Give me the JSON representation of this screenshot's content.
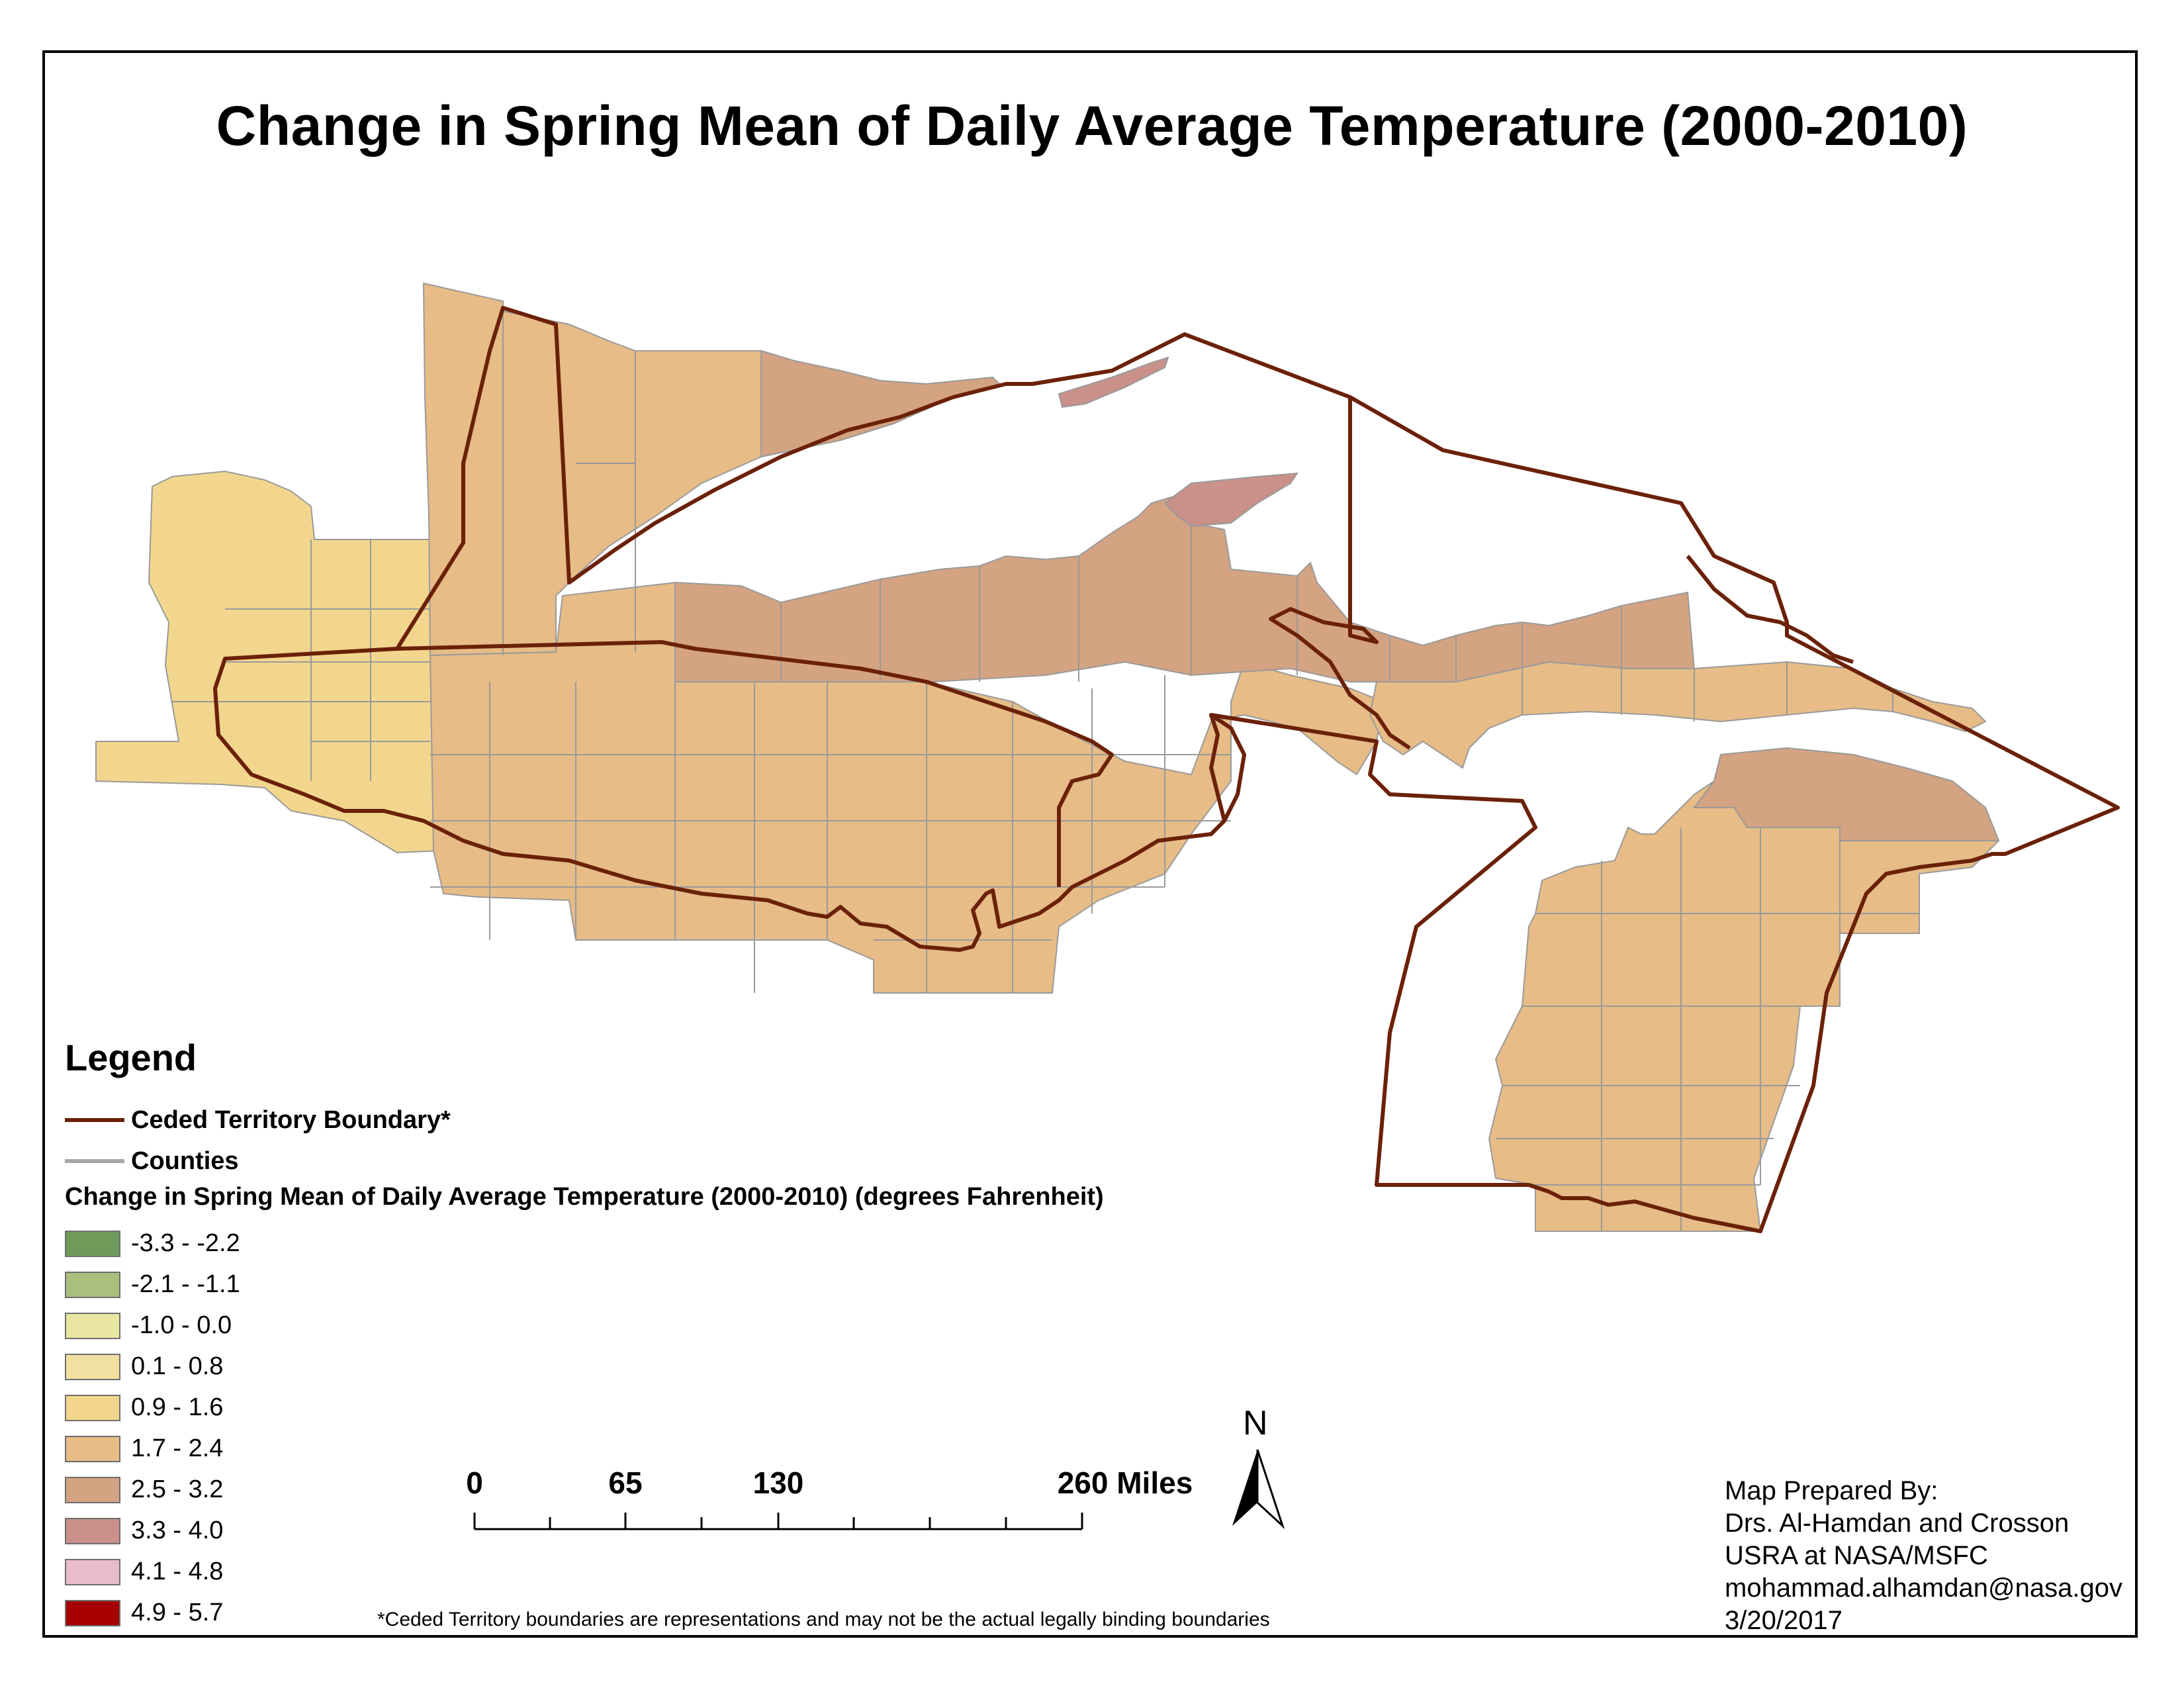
{
  "title": "Change in Spring Mean of Daily Average Temperature (2000-2010)",
  "legend": {
    "heading": "Legend",
    "lines": [
      {
        "label": "Ceded Territory Boundary*",
        "color": "#6b2108"
      },
      {
        "label": "Counties",
        "color": "#a8a8a8"
      }
    ],
    "classes_title": "Change in Spring Mean of Daily Average Temperature (2000-2010) (degrees Fahrenheit)",
    "classes": [
      {
        "label": "-3.3 - -2.2",
        "color": "#6e9b5a"
      },
      {
        "label": "-2.1 - -1.1",
        "color": "#a9bf7d"
      },
      {
        "label": "-1.0 - 0.0",
        "color": "#e8e6a0"
      },
      {
        "label": "0.1 - 0.8",
        "color": "#f2e0a0"
      },
      {
        "label": "0.9 - 1.6",
        "color": "#f3d68e"
      },
      {
        "label": "1.7 - 2.4",
        "color": "#e7bc87"
      },
      {
        "label": "2.5 - 3.2",
        "color": "#d4a382"
      },
      {
        "label": "3.3 - 4.0",
        "color": "#c9918a"
      },
      {
        "label": "4.1 - 4.8",
        "color": "#e9bccb"
      },
      {
        "label": "4.9 - 5.7",
        "color": "#a60000"
      }
    ]
  },
  "scale_bar": {
    "labels": [
      "0",
      "65",
      "130",
      "260 Miles"
    ]
  },
  "north_arrow": {
    "label": "N",
    "icon": "north-arrow-icon"
  },
  "credit": {
    "lines": [
      "Map Prepared By:",
      "Drs. Al-Hamdan and Crosson",
      "USRA at NASA/MSFC",
      "mohammad.alhamdan@nasa.gov",
      "3/20/2017"
    ]
  },
  "footnote": "*Ceded Territory boundaries are representations and may not be the actual legally binding boundaries"
}
